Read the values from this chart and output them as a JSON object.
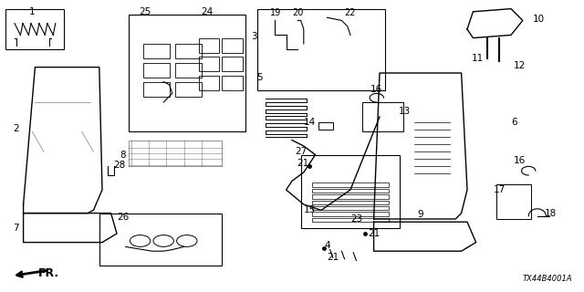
{
  "title": "",
  "fig_width": 6.4,
  "fig_height": 3.2,
  "dpi": 100,
  "bg_color": "#ffffff",
  "diagram_code": "TX44B4001A",
  "fr_label": "FR.",
  "line_color": "#000000",
  "text_color": "#000000",
  "font_size": 7.5,
  "font_size_small": 6.5,
  "font_size_code": 6.0
}
